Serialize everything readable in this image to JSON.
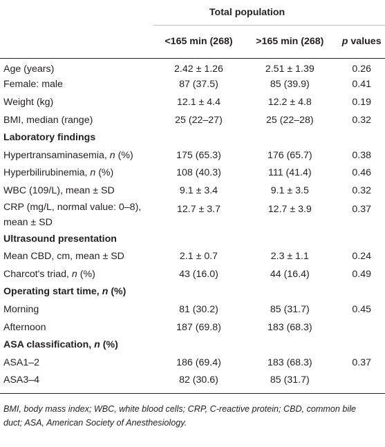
{
  "header": {
    "group_label": "Total population",
    "col_a": "<165 min (268)",
    "col_b": ">165 min (268)",
    "col_p_italic": "p",
    "col_p_rest": " values"
  },
  "rows": [
    {
      "label": "Age (years)",
      "a": "2.42 ± 1.26",
      "b": "2.51 ± 1.39",
      "p": "0.26"
    },
    {
      "label": "Female: male",
      "a": "87 (37.5)",
      "b": "85 (39.9)",
      "p": "0.41"
    },
    {
      "label": "Weight (kg)",
      "a": "12.1 ± 4.4",
      "b": "12.2 ± 4.8",
      "p": "0.19"
    },
    {
      "label": "BMI, median (range)",
      "a": "25 (22–27)",
      "b": "25 (22–28)",
      "p": "0.32"
    },
    {
      "section": "Laboratory findings"
    },
    {
      "label": "Hypertransaminasemia, ",
      "n": "n",
      "tail": " (%)",
      "a": "175 (65.3)",
      "b": "176 (65.7)",
      "p": "0.38"
    },
    {
      "label": "Hyperbilirubinemia, ",
      "n": "n",
      "tail": " (%)",
      "a": "108 (40.3)",
      "b": "111 (41.4)",
      "p": "0.46"
    },
    {
      "label": "WBC (109/L), mean ± SD",
      "a": "9.1 ± 3.4",
      "b": "9.1 ± 3.5",
      "p": "0.32"
    },
    {
      "label": "CRP (mg/L, normal value: 0–8),",
      "label2": "mean ± SD",
      "a": "12.7 ± 3.7",
      "b": "12.7 ± 3.9",
      "p": "0.37"
    },
    {
      "section": "Ultrasound presentation"
    },
    {
      "label": "Mean CBD, cm, mean ± SD",
      "a": "2.1 ± 0.7",
      "b": "2.3 ± 1.1",
      "p": "0.24"
    },
    {
      "label": "Charcot's triad, ",
      "n": "n",
      "tail": " (%)",
      "a": "43 (16.0)",
      "b": "44 (16.4)",
      "p": "0.49"
    },
    {
      "section": "Operating start time, ",
      "section_n": "n",
      "section_tail": " (%)"
    },
    {
      "label": "Morning",
      "a": "81 (30.2)",
      "b": "85 (31.7)",
      "p": "0.45"
    },
    {
      "label": "Afternoon",
      "a": "187 (69.8)",
      "b": "183 (68.3)",
      "p": ""
    },
    {
      "section": "ASA classification, ",
      "section_n": "n",
      "section_tail": " (%)"
    },
    {
      "label": "ASA1–2",
      "a": "186 (69.4)",
      "b": "183 (68.3)",
      "p": "0.37"
    },
    {
      "label": "ASA3–4",
      "a": "82 (30.6)",
      "b": "85 (31.7)",
      "p": ""
    }
  ],
  "footnote": "BMI, body mass index; WBC, white blood cells; CRP, C-reactive protein; CBD, common bile duct; ASA, American Society of Anesthesiology."
}
